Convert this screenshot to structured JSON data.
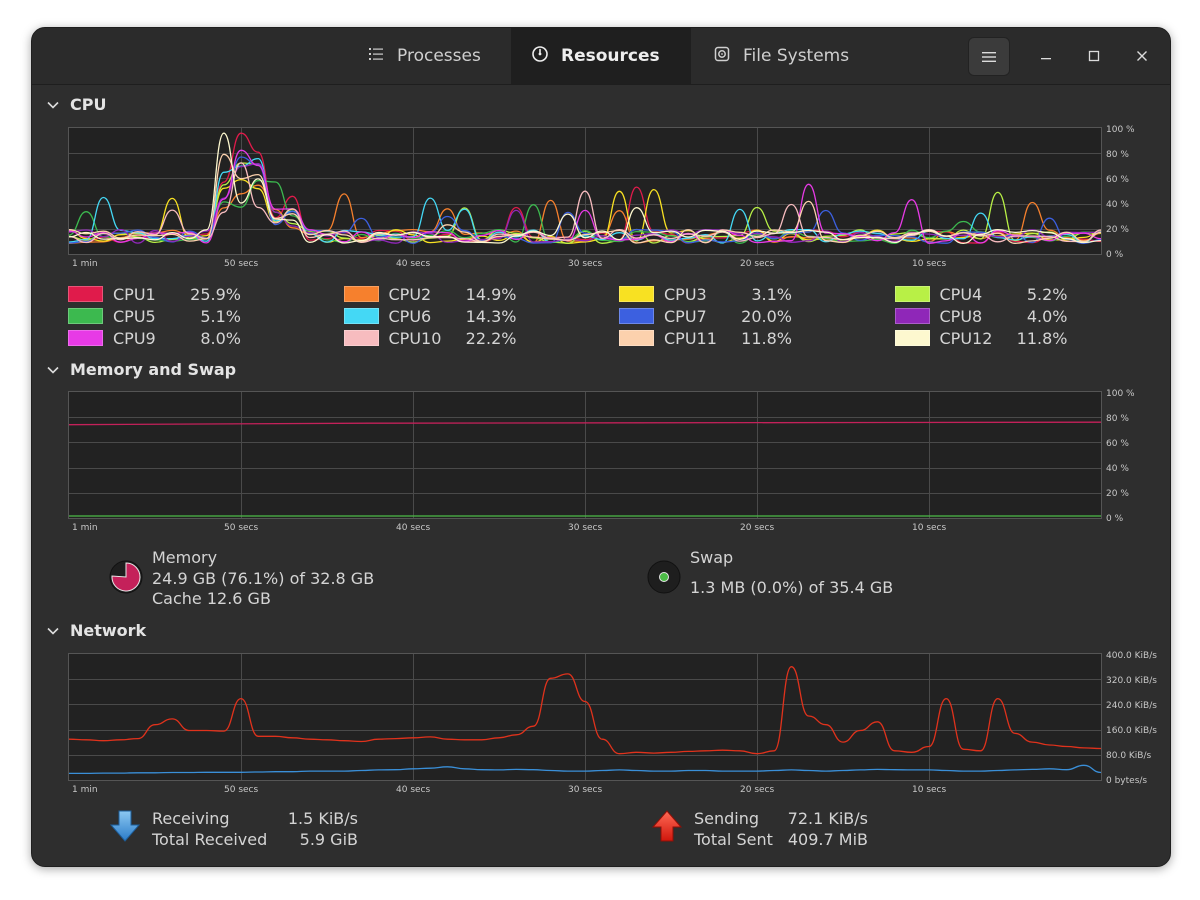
{
  "tabs": [
    {
      "label": "Processes",
      "icon": "list-icon"
    },
    {
      "label": "Resources",
      "icon": "gauge-icon"
    },
    {
      "label": "File Systems",
      "icon": "disk-icon"
    }
  ],
  "sections": {
    "cpu": "CPU",
    "memory": "Memory and Swap",
    "network": "Network"
  },
  "time_labels": [
    "1 min",
    "50 secs",
    "40 secs",
    "30 secs",
    "20 secs",
    "10 secs"
  ],
  "percent_labels": [
    "100 %",
    "80 %",
    "60 %",
    "40 %",
    "20 %",
    "0 %"
  ],
  "network_labels": [
    "400.0 KiB/s",
    "320.0 KiB/s",
    "240.0 KiB/s",
    "160.0 KiB/s",
    "80.0 KiB/s",
    "0 bytes/s"
  ],
  "cpu_legend": [
    {
      "name": "CPU1",
      "value": "25.9%",
      "color": "#e01b4b"
    },
    {
      "name": "CPU2",
      "value": "14.9%",
      "color": "#f6802d"
    },
    {
      "name": "CPU3",
      "value": "3.1%",
      "color": "#f8e122"
    },
    {
      "name": "CPU4",
      "value": "5.2%",
      "color": "#b8f046"
    },
    {
      "name": "CPU5",
      "value": "5.1%",
      "color": "#3cb94f"
    },
    {
      "name": "CPU6",
      "value": "14.3%",
      "color": "#44d8f5"
    },
    {
      "name": "CPU7",
      "value": "20.0%",
      "color": "#3c60e0"
    },
    {
      "name": "CPU8",
      "value": "4.0%",
      "color": "#8f27b8"
    },
    {
      "name": "CPU9",
      "value": "8.0%",
      "color": "#e73ae6"
    },
    {
      "name": "CPU10",
      "value": "22.2%",
      "color": "#f7bcbf"
    },
    {
      "name": "CPU11",
      "value": "11.8%",
      "color": "#fcd1ad"
    },
    {
      "name": "CPU12",
      "value": "11.8%",
      "color": "#fdf8cf"
    }
  ],
  "memory": {
    "label": "Memory",
    "usage": "24.9 GB (76.1%) of 32.8 GB",
    "cache": "Cache 12.6 GB",
    "color": "#c4215a",
    "fraction": 0.761
  },
  "swap": {
    "label": "Swap",
    "usage": "1.3 MB (0.0%) of 35.4 GB",
    "color": "#4cbb47"
  },
  "network": {
    "receiving_label": "Receiving",
    "receiving_value": "1.5 KiB/s",
    "total_received_label": "Total Received",
    "total_received_value": "5.9 GiB",
    "sending_label": "Sending",
    "sending_value": "72.1 KiB/s",
    "total_sent_label": "Total Sent",
    "total_sent_value": "409.7 MiB",
    "receive_color": "#3a8fd8",
    "send_color": "#e0321c"
  }
}
